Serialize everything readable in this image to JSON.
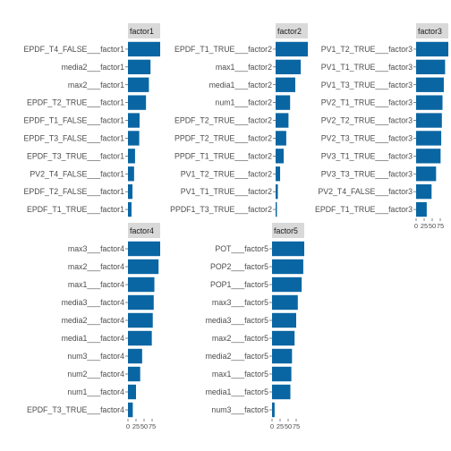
{
  "colors": {
    "bar": "#0a66a3",
    "strip": "#d9d9d9",
    "axis": "#333333"
  },
  "chart_data": [
    {
      "type": "bar",
      "orientation": "horizontal",
      "facet": "factor1",
      "categories": [
        "EPDF_T4_FALSE___factor1",
        "media2___factor1",
        "max2___factor1",
        "EPDF_T2_TRUE___factor1",
        "EPDF_T1_FALSE___factor1",
        "EPDF_T3_FALSE___factor1",
        "EPDF_T3_TRUE___factor1",
        "PV2_T4_FALSE___factor1",
        "EPDF_T2_FALSE___factor1",
        "EPDF_T1_TRUE___factor1"
      ],
      "values": [
        100,
        70,
        65,
        56,
        36,
        35,
        22,
        19,
        14,
        11
      ],
      "xlim": [
        0,
        100
      ],
      "ticks": [
        0,
        25,
        50,
        75
      ],
      "tick_labels": [
        "0",
        "25",
        "50",
        "75"
      ],
      "show_x_axis": false
    },
    {
      "type": "bar",
      "orientation": "horizontal",
      "facet": "factor2",
      "categories": [
        "EPDF_T1_TRUE___factor2",
        "max1___factor2",
        "media1___factor2",
        "num1___factor2",
        "EPDF_T2_TRUE___factor2",
        "PPDF_T2_TRUE___factor2",
        "PPDF_T1_TRUE___factor2",
        "PV1_T2_TRUE___factor2",
        "PV1_T1_TRUE___factor2",
        "PPDF1_T3_TRUE___factor2"
      ],
      "values": [
        100,
        78,
        61,
        45,
        40,
        33,
        25,
        14,
        7,
        4
      ],
      "xlim": [
        0,
        100
      ],
      "ticks": [
        0,
        25,
        50,
        75
      ],
      "tick_labels": [
        "0",
        "25",
        "50",
        "75"
      ],
      "show_x_axis": false
    },
    {
      "type": "bar",
      "orientation": "horizontal",
      "facet": "factor3",
      "categories": [
        "PV1_T2_TRUE___factor3",
        "PV1_T1_TRUE___factor3",
        "PV1_T3_TRUE___factor3",
        "PV2_T1_TRUE___factor3",
        "PV2_T2_TRUE___factor3",
        "PV2_T3_TRUE___factor3",
        "PV3_T1_TRUE___factor3",
        "PV3_T3_TRUE___factor3",
        "PV2_T4_FALSE___factor3",
        "EPDF_T1_TRUE___factor3"
      ],
      "values": [
        100,
        90,
        86,
        82,
        80,
        78,
        76,
        62,
        48,
        33
      ],
      "xlim": [
        0,
        100
      ],
      "ticks": [
        0,
        25,
        50,
        75
      ],
      "tick_labels": [
        "0",
        "25",
        "50",
        "75"
      ],
      "show_x_axis": true
    },
    {
      "type": "bar",
      "orientation": "horizontal",
      "facet": "factor4",
      "categories": [
        "max3___factor4",
        "max2___factor4",
        "max1___factor4",
        "media3___factor4",
        "media2___factor4",
        "media1___factor4",
        "num3___factor4",
        "num2___factor4",
        "num1___factor4",
        "EPDF_T3_TRUE___factor4"
      ],
      "values": [
        100,
        95,
        82,
        80,
        77,
        74,
        44,
        38,
        25,
        15
      ],
      "xlim": [
        0,
        100
      ],
      "ticks": [
        0,
        25,
        50,
        75
      ],
      "tick_labels": [
        "0",
        "25",
        "50",
        "75"
      ],
      "show_x_axis": true
    },
    {
      "type": "bar",
      "orientation": "horizontal",
      "facet": "factor5",
      "categories": [
        "POT___factor5",
        "POP2___factor5",
        "POP1___factor5",
        "max3___factor5",
        "media3___factor5",
        "max2___factor5",
        "media2___factor5",
        "max1___factor5",
        "media1___factor5",
        "num3___factor5"
      ],
      "values": [
        100,
        97,
        92,
        80,
        75,
        70,
        62,
        60,
        57,
        8
      ],
      "xlim": [
        0,
        100
      ],
      "ticks": [
        0,
        25,
        50,
        75
      ],
      "tick_labels": [
        "0",
        "25",
        "50",
        "75"
      ],
      "show_x_axis": true
    }
  ]
}
